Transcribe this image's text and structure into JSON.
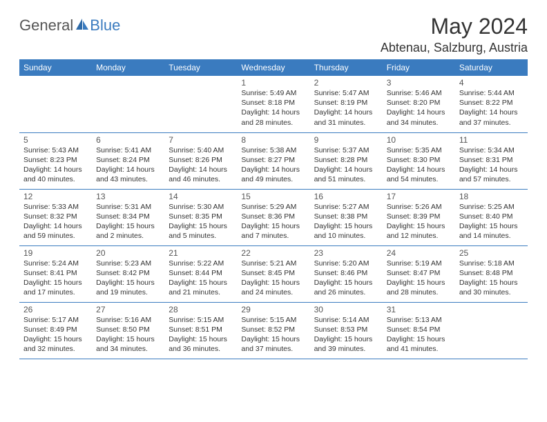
{
  "logo": {
    "general": "General",
    "blue": "Blue"
  },
  "title": "May 2024",
  "location": "Abtenau, Salzburg, Austria",
  "colors": {
    "header_bg": "#3a7bbf",
    "header_text": "#ffffff",
    "border": "#3a7bbf",
    "title_color": "#333333",
    "body_text": "#333333"
  },
  "weekdays": [
    "Sunday",
    "Monday",
    "Tuesday",
    "Wednesday",
    "Thursday",
    "Friday",
    "Saturday"
  ],
  "weeks": [
    [
      null,
      null,
      null,
      {
        "n": "1",
        "sr": "5:49 AM",
        "ss": "8:18 PM",
        "dl": "14 hours and 28 minutes."
      },
      {
        "n": "2",
        "sr": "5:47 AM",
        "ss": "8:19 PM",
        "dl": "14 hours and 31 minutes."
      },
      {
        "n": "3",
        "sr": "5:46 AM",
        "ss": "8:20 PM",
        "dl": "14 hours and 34 minutes."
      },
      {
        "n": "4",
        "sr": "5:44 AM",
        "ss": "8:22 PM",
        "dl": "14 hours and 37 minutes."
      }
    ],
    [
      {
        "n": "5",
        "sr": "5:43 AM",
        "ss": "8:23 PM",
        "dl": "14 hours and 40 minutes."
      },
      {
        "n": "6",
        "sr": "5:41 AM",
        "ss": "8:24 PM",
        "dl": "14 hours and 43 minutes."
      },
      {
        "n": "7",
        "sr": "5:40 AM",
        "ss": "8:26 PM",
        "dl": "14 hours and 46 minutes."
      },
      {
        "n": "8",
        "sr": "5:38 AM",
        "ss": "8:27 PM",
        "dl": "14 hours and 49 minutes."
      },
      {
        "n": "9",
        "sr": "5:37 AM",
        "ss": "8:28 PM",
        "dl": "14 hours and 51 minutes."
      },
      {
        "n": "10",
        "sr": "5:35 AM",
        "ss": "8:30 PM",
        "dl": "14 hours and 54 minutes."
      },
      {
        "n": "11",
        "sr": "5:34 AM",
        "ss": "8:31 PM",
        "dl": "14 hours and 57 minutes."
      }
    ],
    [
      {
        "n": "12",
        "sr": "5:33 AM",
        "ss": "8:32 PM",
        "dl": "14 hours and 59 minutes."
      },
      {
        "n": "13",
        "sr": "5:31 AM",
        "ss": "8:34 PM",
        "dl": "15 hours and 2 minutes."
      },
      {
        "n": "14",
        "sr": "5:30 AM",
        "ss": "8:35 PM",
        "dl": "15 hours and 5 minutes."
      },
      {
        "n": "15",
        "sr": "5:29 AM",
        "ss": "8:36 PM",
        "dl": "15 hours and 7 minutes."
      },
      {
        "n": "16",
        "sr": "5:27 AM",
        "ss": "8:38 PM",
        "dl": "15 hours and 10 minutes."
      },
      {
        "n": "17",
        "sr": "5:26 AM",
        "ss": "8:39 PM",
        "dl": "15 hours and 12 minutes."
      },
      {
        "n": "18",
        "sr": "5:25 AM",
        "ss": "8:40 PM",
        "dl": "15 hours and 14 minutes."
      }
    ],
    [
      {
        "n": "19",
        "sr": "5:24 AM",
        "ss": "8:41 PM",
        "dl": "15 hours and 17 minutes."
      },
      {
        "n": "20",
        "sr": "5:23 AM",
        "ss": "8:42 PM",
        "dl": "15 hours and 19 minutes."
      },
      {
        "n": "21",
        "sr": "5:22 AM",
        "ss": "8:44 PM",
        "dl": "15 hours and 21 minutes."
      },
      {
        "n": "22",
        "sr": "5:21 AM",
        "ss": "8:45 PM",
        "dl": "15 hours and 24 minutes."
      },
      {
        "n": "23",
        "sr": "5:20 AM",
        "ss": "8:46 PM",
        "dl": "15 hours and 26 minutes."
      },
      {
        "n": "24",
        "sr": "5:19 AM",
        "ss": "8:47 PM",
        "dl": "15 hours and 28 minutes."
      },
      {
        "n": "25",
        "sr": "5:18 AM",
        "ss": "8:48 PM",
        "dl": "15 hours and 30 minutes."
      }
    ],
    [
      {
        "n": "26",
        "sr": "5:17 AM",
        "ss": "8:49 PM",
        "dl": "15 hours and 32 minutes."
      },
      {
        "n": "27",
        "sr": "5:16 AM",
        "ss": "8:50 PM",
        "dl": "15 hours and 34 minutes."
      },
      {
        "n": "28",
        "sr": "5:15 AM",
        "ss": "8:51 PM",
        "dl": "15 hours and 36 minutes."
      },
      {
        "n": "29",
        "sr": "5:15 AM",
        "ss": "8:52 PM",
        "dl": "15 hours and 37 minutes."
      },
      {
        "n": "30",
        "sr": "5:14 AM",
        "ss": "8:53 PM",
        "dl": "15 hours and 39 minutes."
      },
      {
        "n": "31",
        "sr": "5:13 AM",
        "ss": "8:54 PM",
        "dl": "15 hours and 41 minutes."
      },
      null
    ]
  ],
  "labels": {
    "sunrise": "Sunrise:",
    "sunset": "Sunset:",
    "daylight": "Daylight:"
  }
}
